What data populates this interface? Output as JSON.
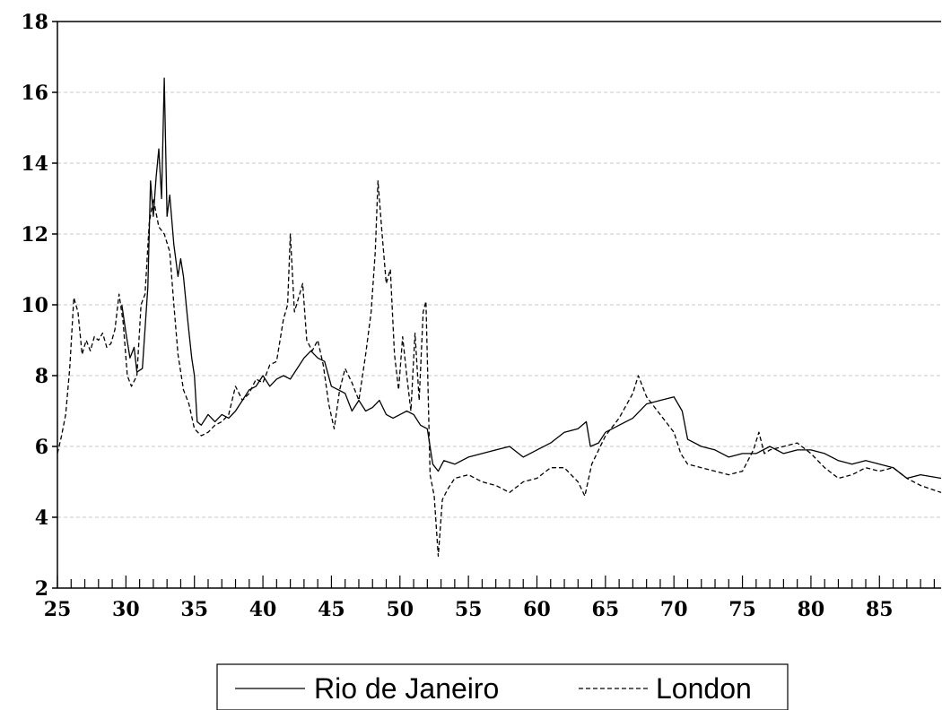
{
  "chart_data": {
    "type": "line",
    "xlim": [
      25,
      89.5
    ],
    "ylim": [
      2,
      18
    ],
    "y_ticks": [
      2,
      4,
      6,
      8,
      10,
      12,
      14,
      16,
      18
    ],
    "x_ticks": [
      25,
      30,
      35,
      40,
      45,
      50,
      55,
      60,
      65,
      70,
      75,
      80,
      85
    ],
    "grid": "horizontal dashed",
    "legend_placement": "bottom-center",
    "series": [
      {
        "name": "Rio de Janeiro",
        "line_style": "solid",
        "color": "#000000",
        "points": [
          [
            29.7,
            10.0
          ],
          [
            30.0,
            9.2
          ],
          [
            30.3,
            8.5
          ],
          [
            30.6,
            8.8
          ],
          [
            30.8,
            8.1
          ],
          [
            31.2,
            8.2
          ],
          [
            31.6,
            10.5
          ],
          [
            31.8,
            13.5
          ],
          [
            32.0,
            12.5
          ],
          [
            32.2,
            13.6
          ],
          [
            32.4,
            14.4
          ],
          [
            32.6,
            13.0
          ],
          [
            32.8,
            16.4
          ],
          [
            33.0,
            12.5
          ],
          [
            33.2,
            13.1
          ],
          [
            33.5,
            11.7
          ],
          [
            33.8,
            10.8
          ],
          [
            34.0,
            11.3
          ],
          [
            34.2,
            10.8
          ],
          [
            34.5,
            9.6
          ],
          [
            34.8,
            8.5
          ],
          [
            35.0,
            8.0
          ],
          [
            35.2,
            6.7
          ],
          [
            35.5,
            6.6
          ],
          [
            36.0,
            6.9
          ],
          [
            36.5,
            6.7
          ],
          [
            37.0,
            6.9
          ],
          [
            37.5,
            6.8
          ],
          [
            38.0,
            7.0
          ],
          [
            38.5,
            7.3
          ],
          [
            39.0,
            7.6
          ],
          [
            39.5,
            7.7
          ],
          [
            40.0,
            8.0
          ],
          [
            40.5,
            7.7
          ],
          [
            41.0,
            7.9
          ],
          [
            41.5,
            8.0
          ],
          [
            42.0,
            7.9
          ],
          [
            42.5,
            8.2
          ],
          [
            43.0,
            8.5
          ],
          [
            43.5,
            8.7
          ],
          [
            44.0,
            8.5
          ],
          [
            44.5,
            8.4
          ],
          [
            45.0,
            7.7
          ],
          [
            45.5,
            7.6
          ],
          [
            46.0,
            7.5
          ],
          [
            46.5,
            7.0
          ],
          [
            47.0,
            7.3
          ],
          [
            47.5,
            7.0
          ],
          [
            48.0,
            7.1
          ],
          [
            48.5,
            7.3
          ],
          [
            49.0,
            6.9
          ],
          [
            49.5,
            6.8
          ],
          [
            50.0,
            6.9
          ],
          [
            50.5,
            7.0
          ],
          [
            51.0,
            6.9
          ],
          [
            51.5,
            6.6
          ],
          [
            52.0,
            6.5
          ],
          [
            52.4,
            5.5
          ],
          [
            52.8,
            5.3
          ],
          [
            53.2,
            5.6
          ],
          [
            54.0,
            5.5
          ],
          [
            55.0,
            5.7
          ],
          [
            56.0,
            5.8
          ],
          [
            57.0,
            5.9
          ],
          [
            58.0,
            6.0
          ],
          [
            59.0,
            5.7
          ],
          [
            60.0,
            5.9
          ],
          [
            61.0,
            6.1
          ],
          [
            62.0,
            6.4
          ],
          [
            63.0,
            6.5
          ],
          [
            63.6,
            6.7
          ],
          [
            63.9,
            6.0
          ],
          [
            64.5,
            6.1
          ],
          [
            65.0,
            6.4
          ],
          [
            66.0,
            6.6
          ],
          [
            67.0,
            6.8
          ],
          [
            68.0,
            7.2
          ],
          [
            69.0,
            7.3
          ],
          [
            70.0,
            7.4
          ],
          [
            70.6,
            7.0
          ],
          [
            71.0,
            6.2
          ],
          [
            72.0,
            6.0
          ],
          [
            73.0,
            5.9
          ],
          [
            74.0,
            5.7
          ],
          [
            75.0,
            5.8
          ],
          [
            76.0,
            5.8
          ],
          [
            77.0,
            6.0
          ],
          [
            78.0,
            5.8
          ],
          [
            79.0,
            5.9
          ],
          [
            80.0,
            5.9
          ],
          [
            81.0,
            5.8
          ],
          [
            82.0,
            5.6
          ],
          [
            83.0,
            5.5
          ],
          [
            84.0,
            5.6
          ],
          [
            85.0,
            5.5
          ],
          [
            86.0,
            5.4
          ],
          [
            87.0,
            5.1
          ],
          [
            88.0,
            5.2
          ],
          [
            89.5,
            5.1
          ]
        ]
      },
      {
        "name": "London",
        "line_style": "dashed",
        "color": "#000000",
        "points": [
          [
            25.0,
            5.8
          ],
          [
            25.3,
            6.3
          ],
          [
            25.6,
            6.9
          ],
          [
            25.9,
            8.2
          ],
          [
            26.2,
            10.2
          ],
          [
            26.5,
            9.8
          ],
          [
            26.8,
            8.6
          ],
          [
            27.1,
            9.0
          ],
          [
            27.4,
            8.7
          ],
          [
            27.7,
            9.1
          ],
          [
            28.0,
            9.0
          ],
          [
            28.3,
            9.2
          ],
          [
            28.6,
            8.8
          ],
          [
            28.9,
            8.9
          ],
          [
            29.2,
            9.3
          ],
          [
            29.5,
            10.3
          ],
          [
            29.8,
            9.5
          ],
          [
            30.1,
            8.0
          ],
          [
            30.4,
            7.7
          ],
          [
            30.8,
            8.0
          ],
          [
            31.1,
            10.0
          ],
          [
            31.4,
            10.3
          ],
          [
            31.7,
            12.3
          ],
          [
            32.0,
            13.0
          ],
          [
            32.4,
            12.2
          ],
          [
            32.8,
            12.0
          ],
          [
            33.2,
            11.5
          ],
          [
            33.5,
            10.0
          ],
          [
            33.8,
            8.6
          ],
          [
            34.2,
            7.6
          ],
          [
            34.6,
            7.2
          ],
          [
            35.0,
            6.5
          ],
          [
            35.5,
            6.3
          ],
          [
            36.0,
            6.4
          ],
          [
            36.5,
            6.6
          ],
          [
            37.0,
            6.7
          ],
          [
            37.5,
            6.9
          ],
          [
            38.0,
            7.7
          ],
          [
            38.5,
            7.3
          ],
          [
            39.0,
            7.5
          ],
          [
            39.5,
            7.9
          ],
          [
            40.0,
            7.8
          ],
          [
            40.5,
            8.3
          ],
          [
            41.0,
            8.4
          ],
          [
            41.5,
            9.6
          ],
          [
            41.8,
            10.0
          ],
          [
            42.0,
            12.0
          ],
          [
            42.3,
            9.8
          ],
          [
            42.6,
            10.2
          ],
          [
            42.9,
            10.6
          ],
          [
            43.2,
            9.0
          ],
          [
            43.6,
            8.7
          ],
          [
            44.0,
            9.0
          ],
          [
            44.4,
            8.3
          ],
          [
            44.8,
            7.2
          ],
          [
            45.2,
            6.5
          ],
          [
            45.6,
            7.6
          ],
          [
            46.0,
            8.2
          ],
          [
            46.5,
            7.8
          ],
          [
            47.0,
            7.3
          ],
          [
            47.5,
            8.6
          ],
          [
            47.9,
            9.8
          ],
          [
            48.2,
            11.5
          ],
          [
            48.4,
            13.5
          ],
          [
            48.7,
            12.0
          ],
          [
            49.0,
            10.6
          ],
          [
            49.3,
            11.0
          ],
          [
            49.6,
            8.6
          ],
          [
            49.9,
            7.6
          ],
          [
            50.2,
            9.1
          ],
          [
            50.5,
            8.0
          ],
          [
            50.8,
            7.0
          ],
          [
            51.1,
            9.2
          ],
          [
            51.4,
            7.3
          ],
          [
            51.7,
            9.8
          ],
          [
            51.9,
            10.1
          ],
          [
            52.2,
            5.2
          ],
          [
            52.5,
            4.6
          ],
          [
            52.8,
            2.9
          ],
          [
            53.1,
            4.5
          ],
          [
            53.5,
            4.8
          ],
          [
            54.0,
            5.1
          ],
          [
            55.0,
            5.2
          ],
          [
            56.0,
            5.0
          ],
          [
            57.0,
            4.9
          ],
          [
            58.0,
            4.7
          ],
          [
            59.0,
            5.0
          ],
          [
            60.0,
            5.1
          ],
          [
            61.0,
            5.4
          ],
          [
            62.0,
            5.4
          ],
          [
            63.0,
            5.0
          ],
          [
            63.5,
            4.6
          ],
          [
            64.0,
            5.5
          ],
          [
            65.0,
            6.3
          ],
          [
            66.0,
            6.8
          ],
          [
            67.0,
            7.5
          ],
          [
            67.4,
            8.0
          ],
          [
            68.0,
            7.4
          ],
          [
            69.0,
            6.9
          ],
          [
            70.0,
            6.4
          ],
          [
            70.5,
            5.8
          ],
          [
            71.0,
            5.5
          ],
          [
            72.0,
            5.4
          ],
          [
            73.0,
            5.3
          ],
          [
            74.0,
            5.2
          ],
          [
            75.0,
            5.3
          ],
          [
            75.8,
            5.9
          ],
          [
            76.2,
            6.4
          ],
          [
            76.6,
            5.8
          ],
          [
            77.0,
            5.9
          ],
          [
            78.0,
            6.0
          ],
          [
            79.0,
            6.1
          ],
          [
            80.0,
            5.8
          ],
          [
            81.0,
            5.4
          ],
          [
            82.0,
            5.1
          ],
          [
            83.0,
            5.2
          ],
          [
            84.0,
            5.4
          ],
          [
            85.0,
            5.3
          ],
          [
            86.0,
            5.4
          ],
          [
            87.0,
            5.1
          ],
          [
            88.0,
            4.9
          ],
          [
            89.5,
            4.7
          ]
        ]
      }
    ]
  }
}
